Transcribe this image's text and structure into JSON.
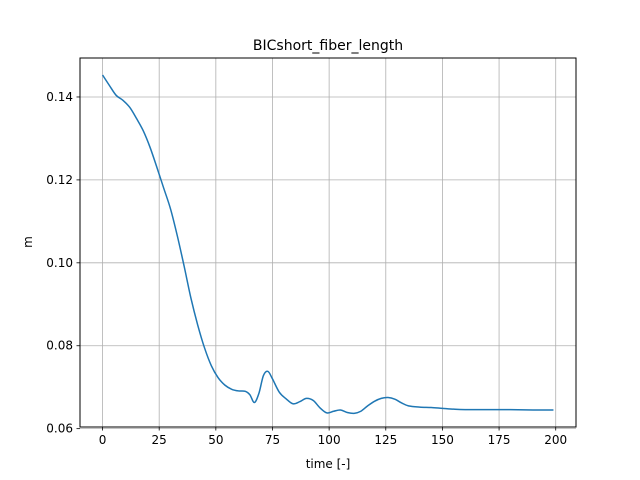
{
  "chart_data": {
    "type": "line",
    "title": "BICshort_fiber_length",
    "xlabel": "time [-]",
    "ylabel": "m",
    "xlim": [
      -9.95,
      208.95
    ],
    "ylim": [
      0.0604,
      0.1494
    ],
    "xticks": [
      0,
      25,
      50,
      75,
      100,
      125,
      150,
      175,
      200
    ],
    "xtick_labels": [
      "0",
      "25",
      "50",
      "75",
      "100",
      "125",
      "150",
      "175",
      "200"
    ],
    "yticks": [
      0.06,
      0.08,
      0.1,
      0.12,
      0.14
    ],
    "ytick_labels": [
      "0.06",
      "0.08",
      "0.10",
      "0.12",
      "0.14"
    ],
    "grid": true,
    "line_color": "#1f77b4",
    "series": [
      {
        "x": [
          0,
          3,
          6,
          9,
          12,
          15,
          18,
          21,
          24,
          27,
          30,
          33,
          36,
          39,
          42,
          45,
          48,
          51,
          54,
          57,
          60,
          63,
          65,
          67,
          69,
          71,
          73,
          75,
          78,
          81,
          84,
          87,
          90,
          93,
          96,
          99,
          102,
          105,
          108,
          111,
          114,
          117,
          120,
          123,
          126,
          129,
          132,
          135,
          140,
          145,
          150,
          155,
          160,
          170,
          180,
          190,
          199
        ],
        "y": [
          0.1453,
          0.1428,
          0.1404,
          0.1392,
          0.1375,
          0.1348,
          0.1318,
          0.1278,
          0.123,
          0.118,
          0.113,
          0.1065,
          0.0992,
          0.0915,
          0.085,
          0.0795,
          0.0752,
          0.0723,
          0.0705,
          0.0695,
          0.0691,
          0.069,
          0.0682,
          0.0663,
          0.0685,
          0.0728,
          0.0738,
          0.072,
          0.0688,
          0.0672,
          0.066,
          0.0665,
          0.0673,
          0.0668,
          0.065,
          0.0638,
          0.0642,
          0.0645,
          0.0639,
          0.0637,
          0.0642,
          0.0655,
          0.0666,
          0.0673,
          0.0675,
          0.0671,
          0.0662,
          0.0655,
          0.0652,
          0.0651,
          0.0649,
          0.0647,
          0.0646,
          0.0646,
          0.0646,
          0.0645,
          0.0645
        ]
      }
    ]
  }
}
